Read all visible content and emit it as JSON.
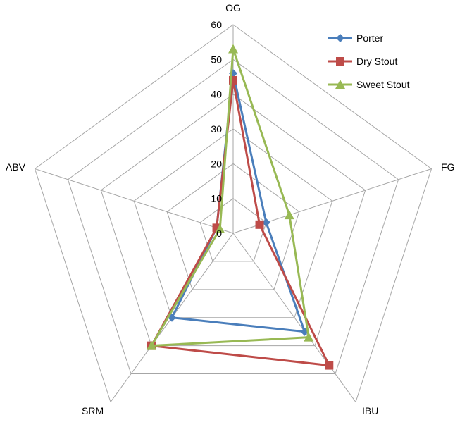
{
  "chart_data": {
    "type": "radar",
    "title": "",
    "axes": [
      "OG",
      "FG",
      "IBU",
      "SRM",
      "ABV"
    ],
    "rlim": [
      0,
      60
    ],
    "ticks": [
      "0",
      "10",
      "20",
      "30",
      "40",
      "50",
      "60"
    ],
    "grid": true,
    "legend_position": "top-right",
    "series": [
      {
        "name": "Porter",
        "color": "#4a7ebb",
        "marker": "diamond",
        "values": [
          46,
          10,
          35,
          30,
          5
        ]
      },
      {
        "name": "Dry Stout",
        "color": "#be4b48",
        "marker": "square",
        "values": [
          44,
          8,
          47,
          40,
          5
        ]
      },
      {
        "name": "Sweet Stout",
        "color": "#98b954",
        "marker": "triangle",
        "values": [
          53,
          17,
          37,
          40,
          4
        ]
      }
    ]
  }
}
